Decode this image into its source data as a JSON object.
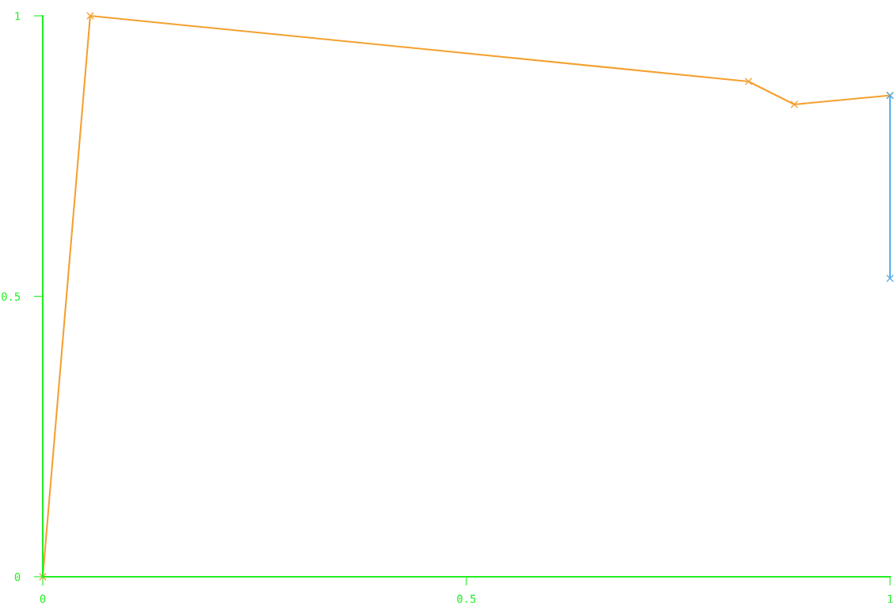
{
  "chart_data": {
    "type": "line",
    "marker": "cross",
    "grid": false,
    "xlim": [
      0,
      1
    ],
    "ylim": [
      0,
      1
    ],
    "xticks": [
      0,
      0.5,
      1
    ],
    "yticks": [
      0,
      0.5,
      1
    ],
    "series": [
      {
        "color": "#f5a030",
        "x": [
          0,
          0.056,
          0.833,
          0.887,
          1
        ],
        "values": [
          0,
          1.0,
          0.883,
          0.842,
          0.858
        ]
      },
      {
        "color": "#5aaee8",
        "x": [
          1,
          1
        ],
        "values": [
          0.858,
          0.532
        ]
      }
    ]
  }
}
